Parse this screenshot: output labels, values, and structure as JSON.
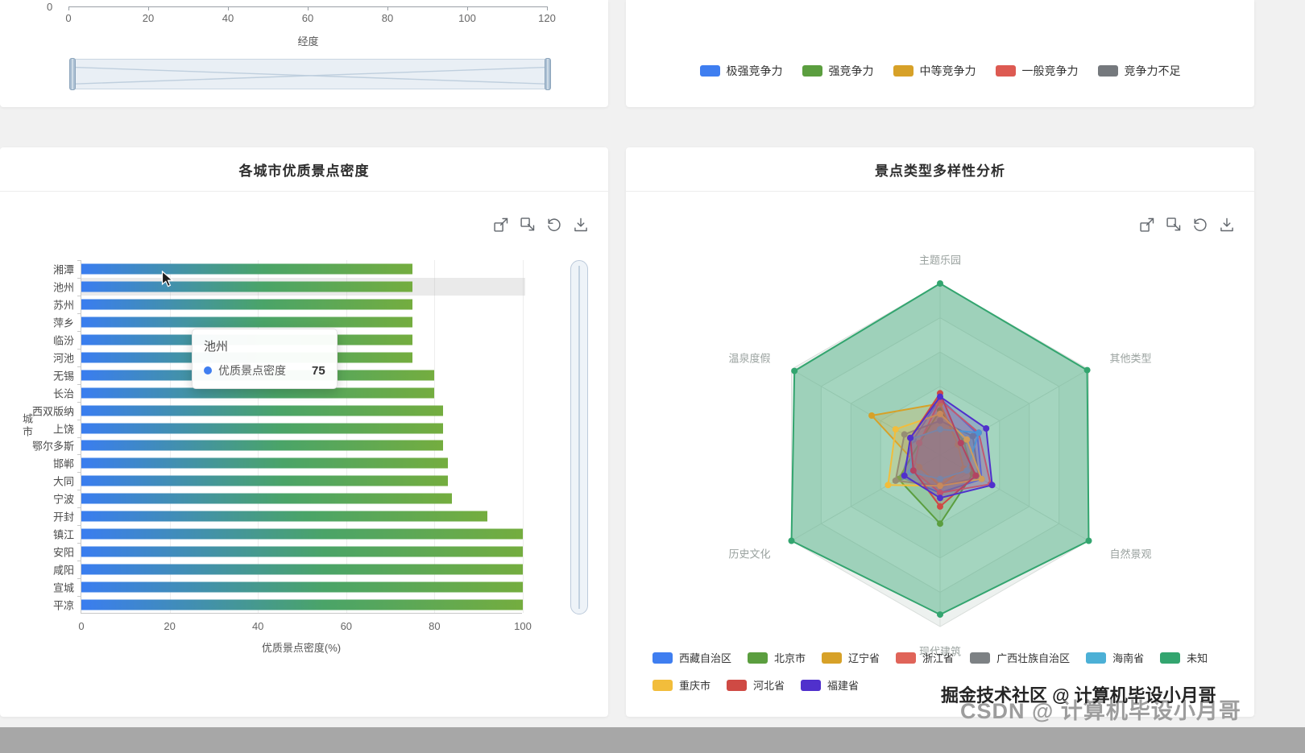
{
  "page": {
    "background": "#f1f1f1",
    "footer_band": "#a7a7a7"
  },
  "toolbox_icons": [
    "data-zoom",
    "data-zoom-reset",
    "restore",
    "download"
  ],
  "chart_data": [
    {
      "id": "longitude-axis-cropped",
      "type": "scatter",
      "xlabel": "经度",
      "x_ticks": [
        "0",
        "20",
        "40",
        "60",
        "80",
        "100",
        "120"
      ],
      "y_ticks": [
        "0"
      ],
      "has_datazoom_slider": true
    },
    {
      "id": "city-quality-density",
      "type": "bar",
      "title": "各城市优质景点密度",
      "orientation": "horizontal",
      "categories": [
        "湘潭",
        "池州",
        "苏州",
        "萍乡",
        "临汾",
        "河池",
        "无锡",
        "长治",
        "西双版纳",
        "上饶",
        "鄂尔多斯",
        "邯郸",
        "大同",
        "宁波",
        "开封",
        "镇江",
        "安阳",
        "咸阳",
        "宣城",
        "平凉"
      ],
      "values": [
        75,
        75,
        75,
        75,
        75,
        75,
        80,
        80,
        82,
        82,
        82,
        83,
        83,
        84,
        92,
        100,
        100,
        100,
        100,
        100
      ],
      "xlabel": "优质景点密度(%)",
      "ylabel": "城市",
      "x_ticks": [
        0,
        20,
        40,
        60,
        80,
        100
      ],
      "xlim": [
        0,
        100
      ],
      "bar_color_start": "#3a7df0",
      "bar_color_mid": "#4aa468",
      "bar_color_end": "#74ad3f",
      "highlighted_category": "池州"
    },
    {
      "id": "type-diversity-radar",
      "type": "radar",
      "title": "景点类型多样性分析",
      "indicators": [
        "主题乐园",
        "其他类型",
        "自然景观",
        "现代建筑",
        "历史文化",
        "温泉度假"
      ],
      "max": 100,
      "series": [
        {
          "name": "西藏自治区",
          "color": "#3f7ef0",
          "values": [
            33,
            25,
            28,
            22,
            26,
            18
          ]
        },
        {
          "name": "北京市",
          "color": "#5b9e3f",
          "values": [
            26,
            16,
            22,
            40,
            28,
            14
          ]
        },
        {
          "name": "辽宁省",
          "color": "#d7a128",
          "values": [
            30,
            12,
            16,
            18,
            14,
            46
          ]
        },
        {
          "name": "浙江省",
          "color": "#e06459",
          "values": [
            32,
            26,
            34,
            22,
            18,
            14
          ]
        },
        {
          "name": "广西壮族自治区",
          "color": "#7d8184",
          "values": [
            20,
            22,
            26,
            18,
            30,
            24
          ]
        },
        {
          "name": "海南省",
          "color": "#4cb0d6",
          "values": [
            15,
            26,
            18,
            14,
            20,
            19
          ]
        },
        {
          "name": "未知",
          "color": "#33a56f",
          "values": [
            100,
            99,
            100,
            93,
            100,
            98
          ]
        },
        {
          "name": "重庆市",
          "color": "#f2bd3b",
          "values": [
            24,
            18,
            28,
            18,
            35,
            30
          ]
        },
        {
          "name": "河北省",
          "color": "#cf4a44",
          "values": [
            36,
            14,
            24,
            30,
            18,
            20
          ]
        },
        {
          "name": "福建省",
          "color": "#5030cc",
          "values": [
            34,
            31,
            35,
            25,
            24,
            20
          ]
        }
      ]
    }
  ],
  "competitiveness_legend": {
    "items": [
      {
        "label": "极强竞争力",
        "color": "#3f7ef0"
      },
      {
        "label": "强竞争力",
        "color": "#5b9e3f"
      },
      {
        "label": "中等竞争力",
        "color": "#d7a128"
      },
      {
        "label": "一般竞争力",
        "color": "#dd5a52"
      },
      {
        "label": "竞争力不足",
        "color": "#75797d"
      }
    ]
  },
  "bar_tooltip": {
    "title": "池州",
    "series_name": "优质景点密度",
    "value": "75",
    "marker_color": "#3f7ef0"
  },
  "radar_legend_rows": [
    [
      "西藏自治区",
      "北京市",
      "辽宁省",
      "浙江省",
      "广西壮族自治区",
      "海南省",
      "未知"
    ],
    [
      "重庆市",
      "河北省",
      "福建省"
    ]
  ],
  "watermarks": {
    "primary": "掘金技术社区 @ 计算机毕设小月哥",
    "secondary": "CSDN @ 计算机毕设小月哥"
  }
}
